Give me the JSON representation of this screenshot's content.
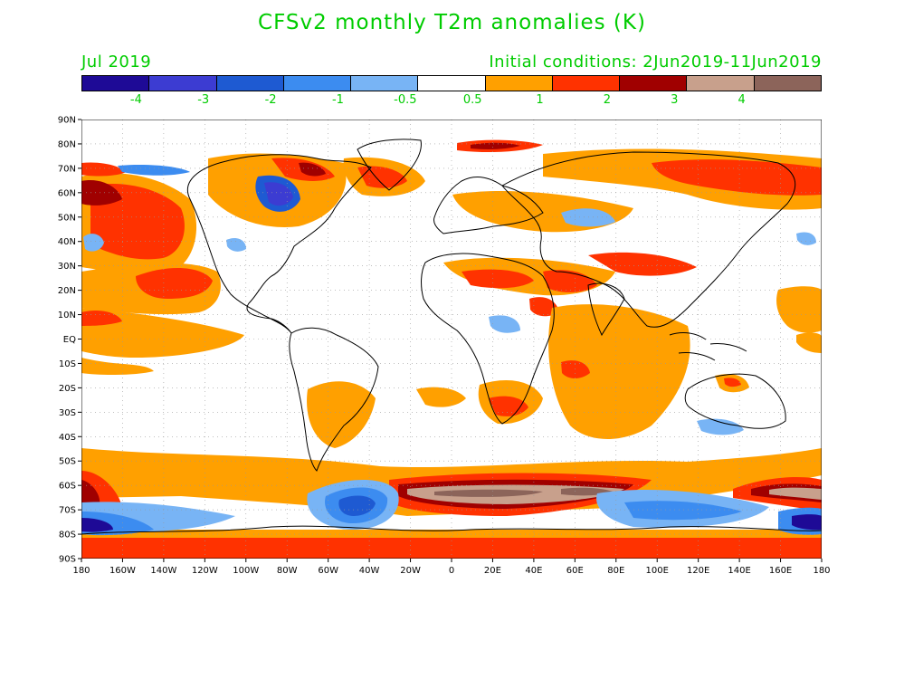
{
  "title": "CFSv2 monthly T2m anomalies (K)",
  "subtitle_left": "Jul 2019",
  "subtitle_right": "Initial conditions: 2Jun2019-11Jun2019",
  "colorbar": {
    "colors": [
      "#1e0a96",
      "#3c3cd2",
      "#1e5ad2",
      "#3c8cf0",
      "#78b4f5",
      "#ffffff",
      "#ffa000",
      "#ff3200",
      "#a00000",
      "#c8a08c",
      "#8c645a"
    ],
    "labels": [
      "-4",
      "-3",
      "-2",
      "-1",
      "-0.5",
      "0.5",
      "1",
      "2",
      "3",
      "4"
    ]
  },
  "axes": {
    "lat_labels": [
      "90N",
      "80N",
      "70N",
      "60N",
      "50N",
      "40N",
      "30N",
      "20N",
      "10N",
      "EQ",
      "10S",
      "20S",
      "30S",
      "40S",
      "50S",
      "60S",
      "70S",
      "80S",
      "90S"
    ],
    "lon_labels": [
      "180",
      "160W",
      "140W",
      "120W",
      "100W",
      "80W",
      "60W",
      "40W",
      "20W",
      "0",
      "20E",
      "40E",
      "60E",
      "80E",
      "100E",
      "120E",
      "140E",
      "160E",
      "180"
    ]
  }
}
